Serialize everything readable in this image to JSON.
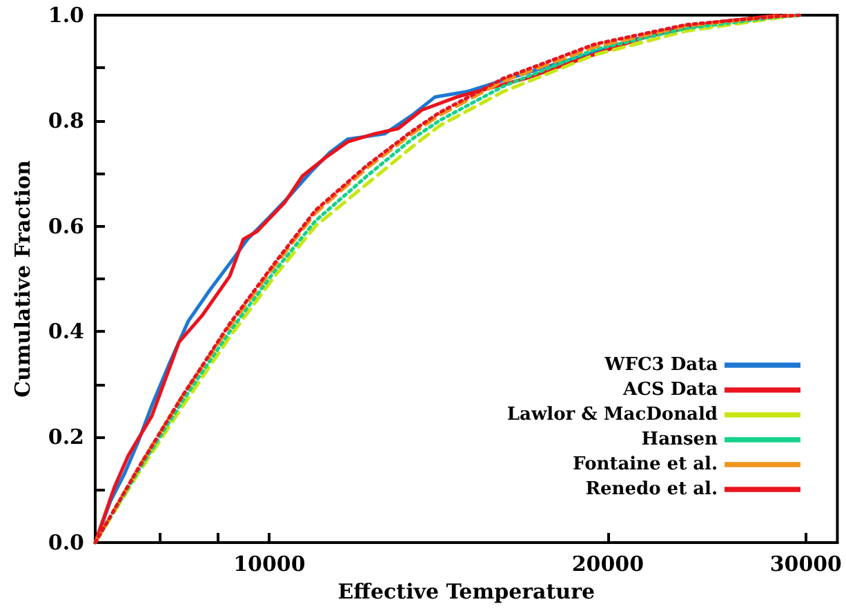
{
  "chart_data": {
    "type": "line",
    "xlabel": "Effective Temperature",
    "ylabel": "Cumulative Fraction",
    "log": "x",
    "xlim": [
      7000,
      32000
    ],
    "xticks": [
      {
        "value": 8000,
        "label": null
      },
      {
        "value": 9000,
        "label": null
      },
      10000,
      20000,
      30000
    ],
    "ylim": [
      0,
      1
    ],
    "yticks": [
      {
        "value": 0,
        "label": "0.0"
      },
      {
        "value": 0.1,
        "label": null
      },
      0.2,
      {
        "value": 0.3,
        "label": null
      },
      0.4,
      {
        "value": 0.5,
        "label": null
      },
      0.6,
      {
        "value": 0.7,
        "label": null
      },
      0.8,
      {
        "value": 0.9,
        "label": null
      },
      {
        "value": 1,
        "label": "1.0"
      }
    ],
    "grid": false,
    "legend": "bottom right",
    "marker": "none",
    "series": [
      {
        "name": "WFC3 Data",
        "color": "#1e78d2",
        "line_style": "solid",
        "x": [
          7000,
          7220,
          7430,
          7640,
          7860,
          8150,
          8470,
          8860,
          9300,
          9560,
          10030,
          10400,
          10910,
          11320,
          11740,
          12660,
          13390,
          14040,
          14980,
          16900,
          19470,
          22360,
          25730,
          29600
        ],
        "values": [
          0,
          0.078,
          0.13,
          0.19,
          0.26,
          0.34,
          0.42,
          0.48,
          0.54,
          0.575,
          0.62,
          0.655,
          0.705,
          0.74,
          0.765,
          0.775,
          0.81,
          0.845,
          0.855,
          0.89,
          0.93,
          0.97,
          0.99,
          1.0
        ]
      },
      {
        "name": "ACS Data",
        "color": "#e8141e",
        "line_style": "solid",
        "x": [
          7000,
          7280,
          7490,
          7860,
          8310,
          8710,
          9220,
          9480,
          9750,
          10320,
          10700,
          11220,
          11740,
          12400,
          13020,
          13660,
          14690,
          16900,
          21000,
          21740,
          24610,
          28350
        ],
        "values": [
          0,
          0.105,
          0.165,
          0.24,
          0.38,
          0.43,
          0.505,
          0.575,
          0.59,
          0.645,
          0.695,
          0.73,
          0.76,
          0.775,
          0.785,
          0.82,
          0.845,
          0.88,
          0.95,
          0.96,
          0.985,
          1.0
        ]
      },
      {
        "name": "Lawlor & MacDonald",
        "color": "#c8e614",
        "line_style": "dashed",
        "x": [
          7000,
          7640,
          8380,
          9220,
          10110,
          10990,
          12210,
          13390,
          14160,
          16140,
          19470,
          23480,
          28350,
          29600
        ],
        "values": [
          0,
          0.13,
          0.26,
          0.39,
          0.505,
          0.6,
          0.68,
          0.75,
          0.79,
          0.855,
          0.925,
          0.97,
          0.995,
          1.0
        ]
      },
      {
        "name": "Hansen",
        "color": "#14d28c",
        "line_style": "dotted",
        "x": [
          7000,
          7640,
          8380,
          9220,
          10110,
          10990,
          12210,
          13390,
          14160,
          16140,
          19470,
          23480,
          28350,
          29600
        ],
        "values": [
          0,
          0.135,
          0.27,
          0.4,
          0.515,
          0.61,
          0.695,
          0.765,
          0.8,
          0.865,
          0.935,
          0.975,
          0.997,
          1.0
        ]
      },
      {
        "name": "Fontaine et al.",
        "color": "#f0961e",
        "line_style": "dashed",
        "x": [
          7000,
          7640,
          8380,
          9220,
          10110,
          10990,
          12210,
          13390,
          14160,
          16140,
          19470,
          23480,
          28350,
          29600
        ],
        "values": [
          0,
          0.14,
          0.28,
          0.41,
          0.525,
          0.625,
          0.71,
          0.775,
          0.81,
          0.875,
          0.94,
          0.98,
          0.998,
          1.0
        ]
      },
      {
        "name": "Renedo et al.",
        "color": "#e8141e",
        "line_style": "dotted",
        "x": [
          7000,
          7640,
          8380,
          9220,
          10110,
          10990,
          12210,
          13390,
          14160,
          16140,
          19470,
          23480,
          28350,
          29600
        ],
        "values": [
          0,
          0.14,
          0.28,
          0.415,
          0.53,
          0.63,
          0.715,
          0.78,
          0.815,
          0.88,
          0.945,
          0.982,
          0.998,
          1.0
        ]
      }
    ]
  }
}
